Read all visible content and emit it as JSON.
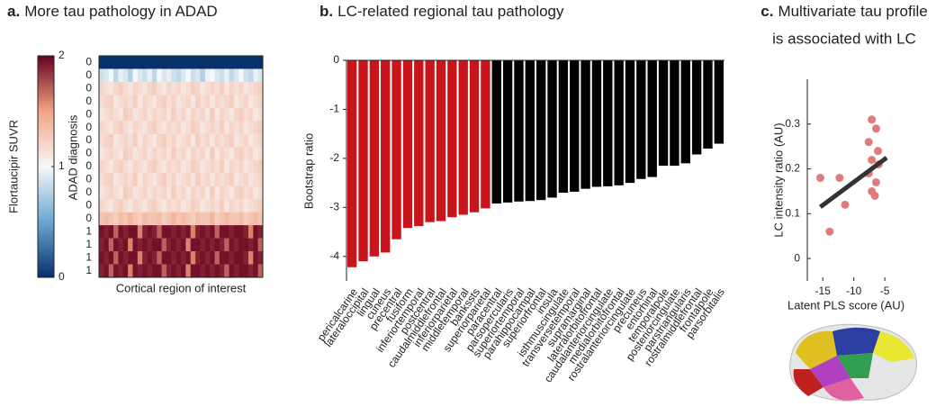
{
  "chart_data": [
    {
      "type": "heatmap",
      "panel_label": "a.",
      "title": "More tau pathology in ADAD",
      "xlabel": "Cortical region of interest",
      "ylabel": "ADAD diagnosis",
      "colorbar_label": "Flortaucipir SUVR",
      "clim": [
        0,
        2
      ],
      "cticks": [
        0,
        1,
        2
      ],
      "colormap": [
        "#08306b",
        "#6aa6d3",
        "#f7f7f7",
        "#f2a484",
        "#67001f"
      ],
      "row_labels": [
        "0",
        "0",
        "0",
        "0",
        "0",
        "0",
        "0",
        "0",
        "0",
        "0",
        "0",
        "0",
        "0",
        "1",
        "1",
        "1",
        "1"
      ],
      "values": [
        [
          0,
          0,
          0,
          0,
          0,
          0,
          0,
          0,
          0,
          0,
          0,
          0,
          0,
          0,
          0,
          0,
          0,
          0,
          0,
          0,
          0,
          0,
          0,
          0,
          0,
          0,
          0,
          0,
          0,
          0,
          0,
          0,
          0,
          0
        ],
        [
          0.85,
          0.9,
          1.0,
          0.8,
          0.95,
          0.9,
          0.75,
          1.0,
          0.9,
          0.85,
          0.95,
          0.8,
          1.0,
          0.9,
          0.95,
          0.85,
          0.8,
          0.9,
          1.0,
          0.85,
          0.9,
          0.75,
          0.95,
          1.0,
          0.9,
          0.85,
          0.95,
          0.8,
          0.9,
          1.0,
          0.85,
          0.8,
          0.95,
          0.9
        ],
        [
          1.2,
          1.15,
          1.1,
          1.2,
          1.25,
          1.15,
          1.1,
          1.2,
          1.15,
          1.1,
          1.2,
          1.25,
          1.15,
          1.1,
          1.2,
          1.15,
          1.2,
          1.1,
          1.15,
          1.25,
          1.2,
          1.1,
          1.15,
          1.2,
          1.15,
          1.25,
          1.1,
          1.2,
          1.15,
          1.2,
          1.1,
          1.15,
          1.2,
          1.25
        ],
        [
          1.15,
          1.2,
          1.25,
          1.1,
          1.15,
          1.2,
          1.15,
          1.25,
          1.1,
          1.2,
          1.15,
          1.1,
          1.2,
          1.25,
          1.15,
          1.2,
          1.1,
          1.15,
          1.2,
          1.1,
          1.25,
          1.15,
          1.2,
          1.1,
          1.2,
          1.15,
          1.2,
          1.25,
          1.1,
          1.15,
          1.2,
          1.1,
          1.15,
          1.2
        ],
        [
          1.1,
          1.15,
          1.2,
          1.15,
          1.1,
          1.25,
          1.2,
          1.1,
          1.15,
          1.2,
          1.1,
          1.2,
          1.15,
          1.2,
          1.1,
          1.25,
          1.15,
          1.2,
          1.1,
          1.2,
          1.15,
          1.2,
          1.1,
          1.25,
          1.1,
          1.2,
          1.15,
          1.1,
          1.2,
          1.25,
          1.15,
          1.2,
          1.1,
          1.15
        ],
        [
          1.2,
          1.15,
          1.1,
          1.2,
          1.25,
          1.15,
          1.1,
          1.2,
          1.15,
          1.1,
          1.2,
          1.25,
          1.15,
          1.1,
          1.2,
          1.15,
          1.2,
          1.1,
          1.15,
          1.25,
          1.2,
          1.1,
          1.15,
          1.2,
          1.15,
          1.25,
          1.1,
          1.2,
          1.15,
          1.2,
          1.1,
          1.15,
          1.2,
          1.25
        ],
        [
          1.15,
          1.2,
          1.25,
          1.1,
          1.15,
          1.2,
          1.15,
          1.25,
          1.1,
          1.2,
          1.15,
          1.1,
          1.2,
          1.25,
          1.15,
          1.2,
          1.1,
          1.15,
          1.2,
          1.1,
          1.25,
          1.15,
          1.2,
          1.1,
          1.2,
          1.15,
          1.2,
          1.25,
          1.1,
          1.15,
          1.2,
          1.1,
          1.15,
          1.2
        ],
        [
          1.1,
          1.15,
          1.2,
          1.15,
          1.1,
          1.25,
          1.2,
          1.1,
          1.15,
          1.2,
          1.1,
          1.2,
          1.15,
          1.2,
          1.1,
          1.25,
          1.15,
          1.2,
          1.1,
          1.2,
          1.15,
          1.2,
          1.1,
          1.25,
          1.1,
          1.2,
          1.15,
          1.1,
          1.2,
          1.25,
          1.15,
          1.2,
          1.1,
          1.15
        ],
        [
          1.2,
          1.15,
          1.1,
          1.2,
          1.25,
          1.15,
          1.1,
          1.2,
          1.15,
          1.1,
          1.2,
          1.25,
          1.15,
          1.1,
          1.2,
          1.15,
          1.2,
          1.1,
          1.15,
          1.25,
          1.2,
          1.1,
          1.15,
          1.2,
          1.15,
          1.25,
          1.1,
          1.2,
          1.15,
          1.2,
          1.1,
          1.15,
          1.2,
          1.25
        ],
        [
          1.15,
          1.2,
          1.25,
          1.1,
          1.15,
          1.2,
          1.15,
          1.25,
          1.1,
          1.2,
          1.15,
          1.1,
          1.2,
          1.25,
          1.15,
          1.2,
          1.1,
          1.15,
          1.2,
          1.1,
          1.25,
          1.15,
          1.2,
          1.1,
          1.2,
          1.15,
          1.2,
          1.25,
          1.1,
          1.15,
          1.2,
          1.1,
          1.15,
          1.2
        ],
        [
          1.1,
          1.15,
          1.2,
          1.15,
          1.1,
          1.25,
          1.2,
          1.1,
          1.15,
          1.2,
          1.1,
          1.2,
          1.15,
          1.2,
          1.1,
          1.25,
          1.15,
          1.2,
          1.1,
          1.2,
          1.15,
          1.2,
          1.1,
          1.25,
          1.1,
          1.2,
          1.15,
          1.1,
          1.2,
          1.25,
          1.15,
          1.2,
          1.1,
          1.15
        ],
        [
          1.2,
          1.15,
          1.1,
          1.2,
          1.25,
          1.15,
          1.1,
          1.2,
          1.15,
          1.1,
          1.2,
          1.25,
          1.15,
          1.1,
          1.2,
          1.15,
          1.2,
          1.1,
          1.15,
          1.25,
          1.2,
          1.1,
          1.15,
          1.2,
          1.15,
          1.25,
          1.1,
          1.2,
          1.15,
          1.2,
          1.1,
          1.15,
          1.2,
          1.25
        ],
        [
          1.3,
          1.35,
          1.3,
          1.25,
          1.35,
          1.3,
          1.4,
          1.3,
          1.25,
          1.35,
          1.3,
          1.3,
          1.35,
          1.25,
          1.3,
          1.4,
          1.3,
          1.35,
          1.3,
          1.25,
          1.35,
          1.3,
          1.3,
          1.4,
          1.25,
          1.3,
          1.35,
          1.3,
          1.3,
          1.35,
          1.25,
          1.3,
          1.35,
          1.3
        ],
        [
          1.95,
          1.9,
          1.95,
          1.7,
          1.95,
          1.9,
          1.95,
          1.95,
          1.6,
          1.9,
          1.95,
          1.9,
          1.7,
          1.95,
          1.95,
          1.9,
          1.95,
          1.9,
          1.95,
          1.6,
          1.9,
          1.95,
          1.9,
          1.95,
          1.7,
          1.95,
          1.95,
          1.9,
          1.95,
          1.95,
          1.9,
          1.6,
          1.95,
          1.9
        ],
        [
          1.9,
          1.95,
          1.7,
          1.95,
          1.9,
          1.95,
          1.6,
          1.95,
          1.9,
          1.95,
          1.9,
          1.95,
          1.95,
          1.7,
          1.9,
          1.95,
          1.9,
          1.95,
          1.6,
          1.95,
          1.95,
          1.9,
          1.95,
          1.9,
          1.95,
          1.9,
          1.7,
          1.95,
          1.9,
          1.95,
          1.95,
          1.9,
          1.95,
          1.7
        ],
        [
          1.95,
          1.9,
          1.95,
          1.7,
          1.95,
          1.9,
          1.95,
          1.95,
          1.6,
          1.9,
          1.95,
          1.9,
          1.7,
          1.95,
          1.95,
          1.9,
          1.95,
          1.9,
          1.95,
          1.6,
          1.9,
          1.95,
          1.9,
          1.95,
          1.7,
          1.95,
          1.95,
          1.9,
          1.95,
          1.95,
          1.9,
          1.6,
          1.95,
          1.9
        ],
        [
          1.9,
          1.95,
          1.7,
          1.95,
          1.9,
          1.95,
          1.6,
          1.95,
          1.9,
          1.95,
          1.9,
          1.95,
          1.95,
          1.7,
          1.9,
          1.95,
          1.9,
          1.95,
          1.6,
          1.95,
          1.95,
          1.9,
          1.95,
          1.9,
          1.95,
          1.9,
          1.7,
          1.95,
          1.9,
          1.95,
          1.95,
          1.9,
          1.95,
          1.7
        ]
      ]
    },
    {
      "type": "bar",
      "panel_label": "b.",
      "title": "LC-related regional tau pathology",
      "ylabel": "Bootstrap ratio",
      "ylim": [
        -4.5,
        0
      ],
      "yticks": [
        0,
        -1,
        -2,
        -3,
        -4
      ],
      "categories": [
        "pericalcarine",
        "lateraloccipital",
        "lingual",
        "cuneus",
        "precentral",
        "fusiform",
        "inferiortemporal",
        "postcentral",
        "caudalmiddlefrontal",
        "inferiorparietal",
        "middletemporal",
        "bankssts",
        "superiorparietal",
        "paracentral",
        "parsopercularis",
        "superiortemporal",
        "parahippocampal",
        "superiorfrontal",
        "insula",
        "isthmuscingulate",
        "transversetemporal",
        "supramarginal",
        "lateralorbitofrontal",
        "caudalanteriorcingulate",
        "medialorbitofrontal",
        "rostralanteriorcingulate",
        "precuneus",
        "entorhinal",
        "temporalpole",
        "posteriorcingulate",
        "parstriangularis",
        "rostralmiddlefrontal",
        "frontalpole",
        "parsorbitalis"
      ],
      "values": [
        -4.22,
        -4.1,
        -4.0,
        -3.92,
        -3.65,
        -3.42,
        -3.38,
        -3.3,
        -3.28,
        -3.2,
        -3.15,
        -3.1,
        -3.02,
        -2.92,
        -2.9,
        -2.88,
        -2.87,
        -2.85,
        -2.8,
        -2.7,
        -2.68,
        -2.62,
        -2.58,
        -2.57,
        -2.55,
        -2.5,
        -2.42,
        -2.38,
        -2.15,
        -2.15,
        -2.1,
        -1.92,
        -1.8,
        -1.7
      ],
      "colors": [
        "#c8141b",
        "#c8141b",
        "#c8141b",
        "#c8141b",
        "#c8141b",
        "#c8141b",
        "#c8141b",
        "#c8141b",
        "#c8141b",
        "#c8141b",
        "#c8141b",
        "#c8141b",
        "#c8141b",
        "#000000",
        "#000000",
        "#000000",
        "#000000",
        "#000000",
        "#000000",
        "#000000",
        "#000000",
        "#000000",
        "#000000",
        "#000000",
        "#000000",
        "#000000",
        "#000000",
        "#000000",
        "#000000",
        "#000000",
        "#000000",
        "#000000",
        "#000000",
        "#000000"
      ]
    },
    {
      "type": "scatter",
      "panel_label": "c.",
      "title_lines": [
        "Multivariate tau profile",
        "is associated with LC"
      ],
      "xlabel": "Latent PLS score (AU)",
      "ylabel": "LC intensity  ratio (AU)",
      "xlim": [
        -17.5,
        -4
      ],
      "ylim": [
        -0.05,
        0.4
      ],
      "xticks": [
        -15,
        -10,
        -5
      ],
      "yticks": [
        0,
        0.1,
        0.2,
        0.3
      ],
      "color": "#e07b7b",
      "line_color": "#333333",
      "x": [
        -15.4,
        -12.3,
        -11.4,
        -13.9,
        -7.1,
        -6.4,
        -7.6,
        -6.1,
        -7.1,
        -6.0,
        -7.6,
        -6.4,
        -7.1,
        -6.6
      ],
      "y": [
        0.18,
        0.18,
        0.12,
        0.06,
        0.31,
        0.29,
        0.26,
        0.24,
        0.22,
        0.21,
        0.19,
        0.17,
        0.15,
        0.14
      ],
      "fit_line": {
        "x": [
          -15.4,
          -4.7
        ],
        "y": [
          0.115,
          0.225
        ]
      }
    }
  ]
}
